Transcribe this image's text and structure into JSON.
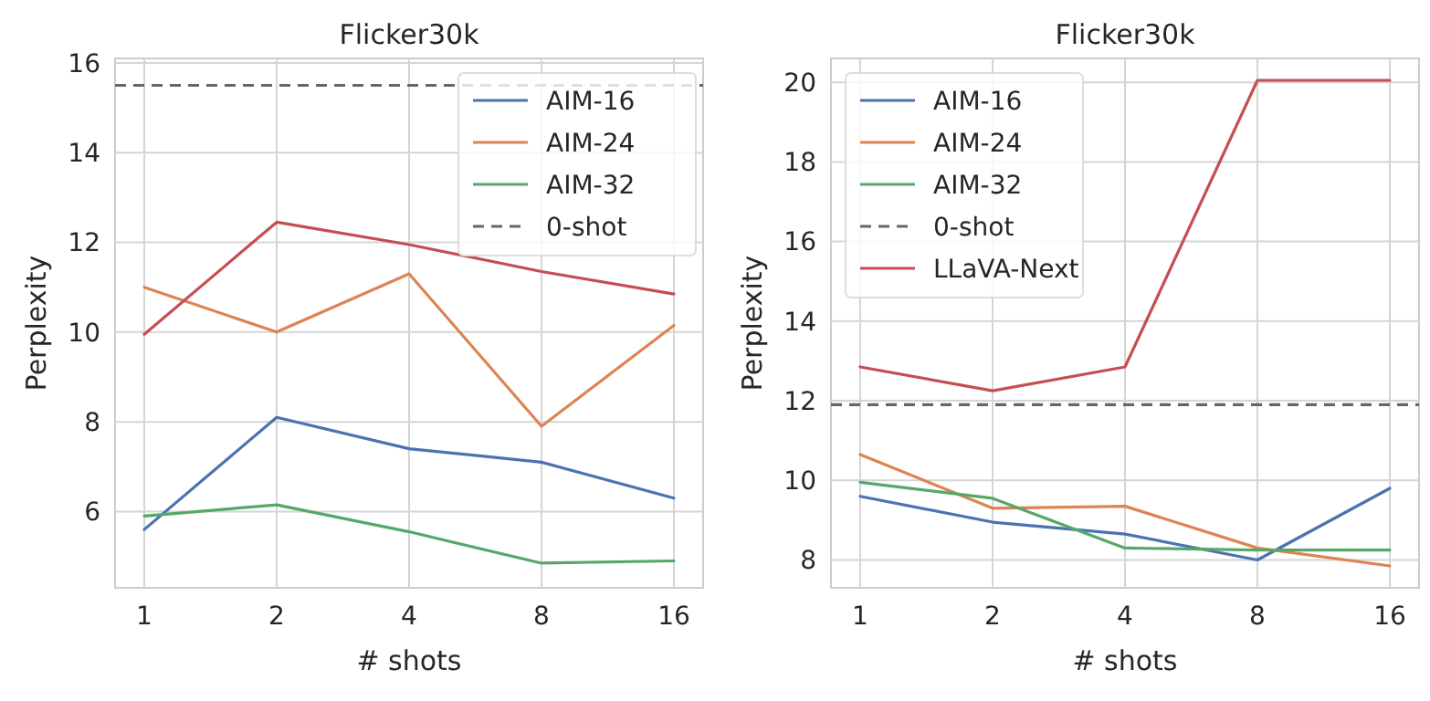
{
  "chart_data": [
    {
      "type": "line",
      "title": "Flicker30k",
      "xlabel": "# shots",
      "ylabel": "Perplexity",
      "categories": [
        "1",
        "2",
        "4",
        "8",
        "16"
      ],
      "ylim": [
        4.3,
        16.1
      ],
      "yticks": [
        6,
        8,
        10,
        12,
        14,
        16
      ],
      "grid": true,
      "legend": "top right",
      "line_style": "solid",
      "ref_lines": [
        {
          "axis": "y",
          "value": 15.5,
          "label": "0-shot",
          "color": "#666666",
          "line_style": "dashed"
        }
      ],
      "series": [
        {
          "name": "AIM-16",
          "color": "#4c72b0",
          "values": [
            5.6,
            8.1,
            7.4,
            7.1,
            6.3
          ]
        },
        {
          "name": "AIM-24",
          "color": "#dd8452",
          "values": [
            11.0,
            10.0,
            11.3,
            7.9,
            10.15
          ]
        },
        {
          "name": "AIM-32",
          "color": "#55a868",
          "values": [
            5.9,
            6.15,
            5.55,
            4.85,
            4.9
          ]
        },
        {
          "color": "#c44e52",
          "values": [
            9.95,
            12.45,
            11.95,
            11.35,
            10.85
          ]
        }
      ]
    },
    {
      "type": "line",
      "title": "Flicker30k",
      "xlabel": "# shots",
      "ylabel": "Perplexity",
      "categories": [
        "1",
        "2",
        "4",
        "8",
        "16"
      ],
      "ylim": [
        7.3,
        20.6
      ],
      "yticks": [
        8,
        10,
        12,
        14,
        16,
        18,
        20
      ],
      "grid": true,
      "legend": "top left",
      "line_style": "solid",
      "ref_lines": [
        {
          "axis": "y",
          "value": 11.9,
          "label": "0-shot",
          "color": "#666666",
          "line_style": "dashed"
        }
      ],
      "series": [
        {
          "name": "AIM-16",
          "color": "#4c72b0",
          "values": [
            9.6,
            8.95,
            8.65,
            8.0,
            9.8
          ]
        },
        {
          "name": "AIM-24",
          "color": "#dd8452",
          "values": [
            10.65,
            9.3,
            9.35,
            8.3,
            7.85
          ]
        },
        {
          "name": "AIM-32",
          "color": "#55a868",
          "values": [
            9.95,
            9.55,
            8.3,
            8.25,
            8.25
          ]
        },
        {
          "name": "LLaVA-Next",
          "color": "#c44e52",
          "values": [
            12.85,
            12.25,
            12.85,
            20.05,
            20.05
          ]
        }
      ]
    }
  ]
}
